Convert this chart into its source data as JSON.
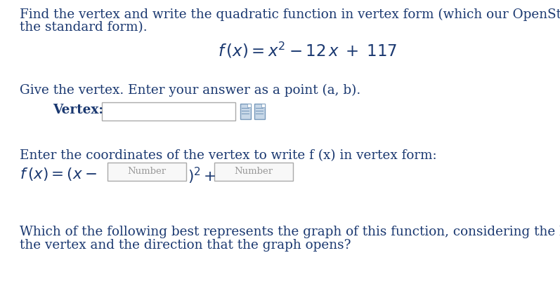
{
  "bg_color": "#ffffff",
  "text_color": "#1a3870",
  "body_fontsize": 13.2,
  "line1": "Find the vertex and write the quadratic function in vertex form (which our OpenStax textbook also calls",
  "line2": "the standard form).",
  "vertex_label": "Give the vertex. Enter your answer as a point (a, b).",
  "vertex_field_label": "Vertex:",
  "vertex_form_intro": "Enter the coordinates of the vertex to write f (x) in vertex form:",
  "placeholder_number": "Number",
  "last_line1": "Which of the following best represents the graph of this function, considering the location (quadrant) of",
  "last_line2": "the vertex and the direction that the graph opens?"
}
